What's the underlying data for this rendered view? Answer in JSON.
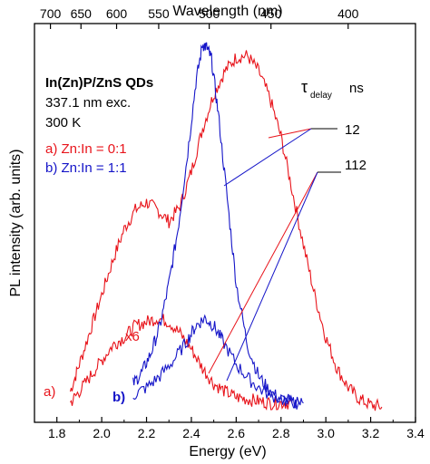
{
  "chart_data": {
    "type": "line",
    "xlabel": "Energy (eV)",
    "ylabel": "PL intensity (arb. units)",
    "top_xlabel": "Wavelength (nm)",
    "xlim": [
      1.7,
      3.4
    ],
    "ylim": [
      0,
      1
    ],
    "x_ticks": [
      "1.8",
      "2.0",
      "2.2",
      "2.4",
      "2.6",
      "2.8",
      "3.0",
      "3.2",
      "3.4"
    ],
    "top_ticks": [
      {
        "label": "700",
        "nm": 700
      },
      {
        "label": "650",
        "nm": 650
      },
      {
        "label": "600",
        "nm": 600
      },
      {
        "label": "550",
        "nm": 550
      },
      {
        "label": "500",
        "nm": 500
      },
      {
        "label": "450",
        "nm": 450
      },
      {
        "label": "400",
        "nm": 400
      }
    ],
    "annotations": {
      "title": "In(Zn)P/ZnS QDs",
      "excitation": "337.1 nm exc.",
      "temperature": "300 K",
      "legend_a": "a) Zn:In = 0:1",
      "legend_b": "b) Zn:In = 1:1",
      "tau": "τ",
      "tau_sub": "delay",
      "tau_unit": "ns",
      "delay_12": "12",
      "delay_112": "112",
      "mult": "x6",
      "label_a": "a)",
      "label_b": "b)"
    },
    "colors": {
      "a": "#e8141b",
      "b": "#1414c8"
    },
    "series": [
      {
        "id": "a-12",
        "color": "#e8141b",
        "x": [
          1.86,
          1.9,
          1.95,
          2.0,
          2.05,
          2.1,
          2.15,
          2.2,
          2.25,
          2.3,
          2.35,
          2.4,
          2.45,
          2.5,
          2.55,
          2.6,
          2.65,
          2.7,
          2.75,
          2.8,
          2.85,
          2.9,
          2.95,
          3.0,
          3.05,
          3.1,
          3.15,
          3.2,
          3.25
        ],
        "y": [
          0.08,
          0.15,
          0.24,
          0.33,
          0.42,
          0.5,
          0.55,
          0.57,
          0.55,
          0.52,
          0.56,
          0.65,
          0.76,
          0.85,
          0.91,
          0.945,
          0.95,
          0.91,
          0.84,
          0.74,
          0.6,
          0.46,
          0.33,
          0.22,
          0.14,
          0.09,
          0.06,
          0.045,
          0.04
        ]
      },
      {
        "id": "a-112",
        "color": "#e8141b",
        "x": [
          1.86,
          1.9,
          1.95,
          2.0,
          2.05,
          2.1,
          2.15,
          2.2,
          2.25,
          2.3,
          2.35,
          2.4,
          2.45,
          2.5,
          2.55,
          2.6,
          2.65,
          2.7,
          2.75,
          2.8,
          2.85
        ],
        "y": [
          0.05,
          0.08,
          0.12,
          0.16,
          0.2,
          0.22,
          0.25,
          0.26,
          0.27,
          0.26,
          0.23,
          0.19,
          0.14,
          0.1,
          0.08,
          0.065,
          0.06,
          0.055,
          0.05,
          0.05,
          0.05
        ]
      },
      {
        "id": "b-12",
        "color": "#1414c8",
        "x": [
          2.14,
          2.18,
          2.22,
          2.26,
          2.3,
          2.34,
          2.38,
          2.42,
          2.45,
          2.47,
          2.49,
          2.52,
          2.56,
          2.6,
          2.65,
          2.7,
          2.75,
          2.8,
          2.85,
          2.9
        ],
        "y": [
          0.1,
          0.13,
          0.18,
          0.25,
          0.36,
          0.5,
          0.68,
          0.88,
          0.98,
          0.97,
          0.94,
          0.8,
          0.58,
          0.36,
          0.2,
          0.12,
          0.08,
          0.06,
          0.05,
          0.05
        ]
      },
      {
        "id": "b-112",
        "color": "#1414c8",
        "x": [
          2.14,
          2.2,
          2.26,
          2.32,
          2.38,
          2.42,
          2.46,
          2.5,
          2.54,
          2.6,
          2.66,
          2.72,
          2.8,
          2.88
        ],
        "y": [
          0.07,
          0.09,
          0.12,
          0.16,
          0.21,
          0.25,
          0.27,
          0.25,
          0.21,
          0.15,
          0.11,
          0.08,
          0.06,
          0.05
        ]
      }
    ]
  }
}
